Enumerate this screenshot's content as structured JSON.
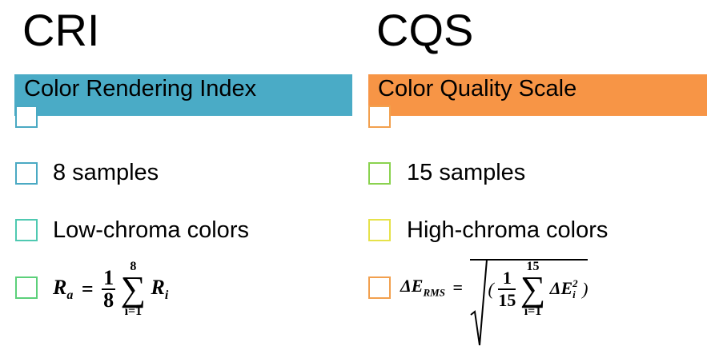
{
  "left": {
    "title": "CRI",
    "banner": "Color Rendering Index",
    "banner_color": "#4aabc6",
    "items": [
      {
        "text": "8 samples",
        "box_color": "#4aa9c3"
      },
      {
        "text": "Low-chroma colors",
        "box_color": "#4fc9b1"
      },
      {
        "box_color": "#5cd07a"
      }
    ],
    "formula": {
      "lhs": "R",
      "lhs_sub": "a",
      "eq": "=",
      "frac_num": "1",
      "frac_den": "8",
      "sum_upper": "8",
      "sum_lower": "i=1",
      "sigma": "∑",
      "term": "R",
      "term_sub": "i"
    }
  },
  "right": {
    "title": "CQS",
    "banner": "Color Quality Scale",
    "banner_color": "#f79546",
    "items": [
      {
        "text": "15 samples",
        "box_color": "#8ad24f"
      },
      {
        "text": "High-chroma colors",
        "box_color": "#e6e24a"
      },
      {
        "box_color": "#f2a04e"
      }
    ],
    "formula": {
      "lhs": "ΔE",
      "lhs_sub": "RMS",
      "eq": "=",
      "frac_num": "1",
      "frac_den": "15",
      "sum_upper": "15",
      "sum_lower": "i=1",
      "sigma": "∑",
      "term": "ΔE",
      "term_sub": "i",
      "term_sup": "2"
    }
  }
}
